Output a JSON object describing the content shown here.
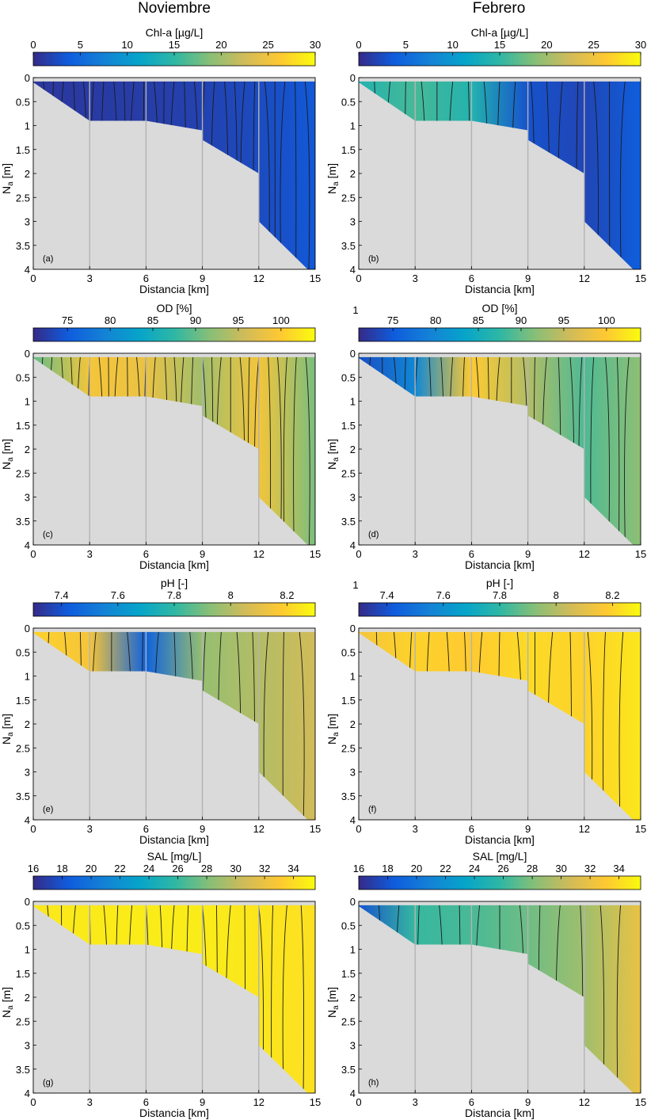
{
  "columns": [
    "Noviembre",
    "Febrero"
  ],
  "colors": {
    "shore": "#dadada",
    "contour": "#1a1a1a"
  },
  "chart_data": [
    {
      "type": "contour",
      "panel_label": "(a)",
      "column": "Noviembre",
      "colorbar_label": "Chl-a [µg/L]",
      "colorbar_ticks": [
        "0",
        "5",
        "10",
        "15",
        "20",
        "25",
        "30"
      ],
      "colorbar_range": [
        0,
        30
      ],
      "xlabel": "Distancia [km]",
      "ylabel": "N_a [m]",
      "xticks": [
        "0",
        "3",
        "6",
        "9",
        "12",
        "15"
      ],
      "yticks": [
        "0",
        "0.5",
        "1",
        "1.5",
        "2",
        "2.5",
        "3",
        "3.5",
        "4"
      ],
      "xlim": [
        0,
        15
      ],
      "ylim": [
        4,
        0
      ],
      "stations_km": [
        3,
        6,
        9,
        12
      ],
      "bottom_depth_m": [
        [
          0,
          0.1
        ],
        [
          3,
          0.9
        ],
        [
          6,
          0.9
        ],
        [
          9,
          1.1
        ],
        [
          9,
          1.3
        ],
        [
          12,
          2.0
        ],
        [
          12,
          3.0
        ],
        [
          14.6,
          4.0
        ],
        [
          15,
          4.0
        ]
      ],
      "profile": [
        [
          0,
          1
        ],
        [
          3,
          1.2
        ],
        [
          6,
          1.4
        ],
        [
          9,
          1.8
        ],
        [
          12,
          2.5
        ],
        [
          15,
          3.5
        ]
      ],
      "contour_lines": 28
    },
    {
      "type": "contour",
      "panel_label": "(b)",
      "column": "Febrero",
      "colorbar_label": "Chl-a [µg/L]",
      "colorbar_ticks": [
        "0",
        "5",
        "10",
        "15",
        "20",
        "25",
        "30"
      ],
      "colorbar_range": [
        0,
        30
      ],
      "xlabel": "Distancia [km]",
      "ylabel": "N_a [m]",
      "xticks": [
        "0",
        "3",
        "6",
        "9",
        "12",
        "15"
      ],
      "yticks": [
        "0",
        "0.5",
        "1",
        "1.5",
        "2",
        "2.5",
        "3",
        "3.5",
        "4"
      ],
      "xlim": [
        0,
        15
      ],
      "ylim": [
        4,
        0
      ],
      "stations_km": [
        3,
        6,
        9,
        12
      ],
      "bottom_depth_m": [
        [
          0,
          0.1
        ],
        [
          3,
          0.9
        ],
        [
          6,
          0.9
        ],
        [
          9,
          1.1
        ],
        [
          9,
          1.3
        ],
        [
          12,
          2.0
        ],
        [
          12,
          3.0
        ],
        [
          14.6,
          4.0
        ],
        [
          15,
          4.0
        ]
      ],
      "profile": [
        [
          0,
          14
        ],
        [
          3,
          16
        ],
        [
          6,
          14
        ],
        [
          9,
          3
        ],
        [
          12,
          2
        ],
        [
          15,
          4
        ]
      ],
      "contour_lines": 18
    },
    {
      "type": "contour",
      "panel_label": "(c)",
      "column": "Noviembre",
      "colorbar_label": "OD [%]",
      "colorbar_ticks": [
        "75",
        "80",
        "85",
        "90",
        "95",
        "100"
      ],
      "colorbar_range": [
        71,
        104
      ],
      "xlabel": "Distancia [km]",
      "ylabel": "N_a [m]",
      "xticks": [
        "0",
        "3",
        "6",
        "9",
        "12",
        "15"
      ],
      "yticks": [
        "0",
        "0.5",
        "1",
        "1.5",
        "2",
        "2.5",
        "3",
        "3.5",
        "4"
      ],
      "xlim": [
        0,
        15
      ],
      "ylim": [
        4,
        0
      ],
      "stations_km": [
        3,
        6,
        9,
        12
      ],
      "bottom_depth_m": [
        [
          0,
          0.1
        ],
        [
          3,
          0.9
        ],
        [
          6,
          0.9
        ],
        [
          9,
          1.1
        ],
        [
          9,
          1.3
        ],
        [
          12,
          2.0
        ],
        [
          12,
          3.0
        ],
        [
          14.6,
          4.0
        ],
        [
          15,
          4.0
        ]
      ],
      "profile": [
        [
          0,
          90
        ],
        [
          3,
          99
        ],
        [
          6,
          98
        ],
        [
          9,
          93
        ],
        [
          12,
          99
        ],
        [
          15,
          91
        ]
      ],
      "contour_lines": 30
    },
    {
      "type": "contour",
      "panel_label": "(d)",
      "column": "Febrero",
      "colorbar_label": "OD [%]",
      "colorbar_ticks": [
        "75",
        "80",
        "85",
        "90",
        "95",
        "100"
      ],
      "colorbar_range": [
        71,
        104
      ],
      "colorbar_extra_label": "1",
      "xlabel": "Distancia [km]",
      "ylabel": "N_a [m]",
      "xticks": [
        "0",
        "3",
        "6",
        "9",
        "12",
        "15"
      ],
      "yticks": [
        "0",
        "0.5",
        "1",
        "1.5",
        "2",
        "2.5",
        "3",
        "3.5",
        "4"
      ],
      "xlim": [
        0,
        15
      ],
      "ylim": [
        4,
        0
      ],
      "stations_km": [
        3,
        6,
        9,
        12
      ],
      "bottom_depth_m": [
        [
          0,
          0.1
        ],
        [
          3,
          0.9
        ],
        [
          6,
          0.9
        ],
        [
          9,
          1.1
        ],
        [
          9,
          1.3
        ],
        [
          12,
          2.0
        ],
        [
          12,
          3.0
        ],
        [
          14.6,
          4.0
        ],
        [
          15,
          4.0
        ]
      ],
      "profile": [
        [
          0,
          74
        ],
        [
          3,
          80
        ],
        [
          6,
          100
        ],
        [
          9,
          94
        ],
        [
          12,
          89
        ],
        [
          15,
          92
        ]
      ],
      "contour_lines": 24
    },
    {
      "type": "contour",
      "panel_label": "(e)",
      "column": "Noviembre",
      "colorbar_label": "pH [-]",
      "colorbar_ticks": [
        "7.4",
        "7.6",
        "7.8",
        "8",
        "8.2"
      ],
      "colorbar_range": [
        7.3,
        8.3
      ],
      "xlabel": "Distancia [km]",
      "ylabel": "N_a [m]",
      "xticks": [
        "0",
        "3",
        "6",
        "9",
        "12",
        "15"
      ],
      "yticks": [
        "0",
        "0.5",
        "1",
        "1.5",
        "2",
        "2.5",
        "3",
        "3.5",
        "4"
      ],
      "xlim": [
        0,
        15
      ],
      "ylim": [
        4,
        0
      ],
      "stations_km": [
        3,
        6,
        9,
        12
      ],
      "bottom_depth_m": [
        [
          0,
          0.1
        ],
        [
          3,
          0.9
        ],
        [
          6,
          0.9
        ],
        [
          9,
          1.1
        ],
        [
          9,
          1.3
        ],
        [
          12,
          2.0
        ],
        [
          12,
          3.0
        ],
        [
          14.6,
          4.0
        ],
        [
          15,
          4.0
        ]
      ],
      "profile": [
        [
          0,
          8.2
        ],
        [
          3,
          8.15
        ],
        [
          6,
          7.45
        ],
        [
          9,
          7.95
        ],
        [
          12,
          8.0
        ],
        [
          15,
          8.05
        ]
      ],
      "contour_lines": 18
    },
    {
      "type": "contour",
      "panel_label": "(f)",
      "column": "Febrero",
      "colorbar_label": "pH [-]",
      "colorbar_ticks": [
        "7.4",
        "7.6",
        "7.8",
        "8",
        "8.2"
      ],
      "colorbar_range": [
        7.3,
        8.3
      ],
      "colorbar_extra_label": "1",
      "xlabel": "Distancia [km]",
      "ylabel": "N_a [m]",
      "xticks": [
        "0",
        "3",
        "6",
        "9",
        "12",
        "15"
      ],
      "yticks": [
        "0",
        "0.5",
        "1",
        "1.5",
        "2",
        "2.5",
        "3",
        "3.5",
        "4"
      ],
      "xlim": [
        0,
        15
      ],
      "ylim": [
        4,
        0
      ],
      "stations_km": [
        3,
        6,
        9,
        12
      ],
      "bottom_depth_m": [
        [
          0,
          0.1
        ],
        [
          3,
          0.9
        ],
        [
          6,
          0.9
        ],
        [
          9,
          1.1
        ],
        [
          9,
          1.3
        ],
        [
          12,
          2.0
        ],
        [
          12,
          3.0
        ],
        [
          14.6,
          4.0
        ],
        [
          15,
          4.0
        ]
      ],
      "profile": [
        [
          0,
          8.15
        ],
        [
          3,
          8.2
        ],
        [
          6,
          8.18
        ],
        [
          9,
          8.22
        ],
        [
          12,
          8.2
        ],
        [
          15,
          8.25
        ]
      ],
      "contour_lines": 16
    },
    {
      "type": "contour",
      "panel_label": "(g)",
      "column": "Noviembre",
      "colorbar_label": "SAL [mg/L]",
      "colorbar_ticks": [
        "16",
        "18",
        "20",
        "22",
        "24",
        "26",
        "28",
        "30",
        "32",
        "34"
      ],
      "colorbar_range": [
        16,
        35.5
      ],
      "xlabel": "Distancia [km]",
      "ylabel": "N_a [m]",
      "xticks": [
        "0",
        "3",
        "6",
        "9",
        "12",
        "15"
      ],
      "yticks": [
        "0",
        "0.5",
        "1",
        "1.5",
        "2",
        "2.5",
        "3",
        "3.5",
        "4"
      ],
      "xlim": [
        0,
        15
      ],
      "ylim": [
        4,
        0
      ],
      "stations_km": [
        3,
        6,
        9,
        12
      ],
      "bottom_depth_m": [
        [
          0,
          0.1
        ],
        [
          3,
          0.9
        ],
        [
          6,
          0.9
        ],
        [
          9,
          1.1
        ],
        [
          9,
          1.3
        ],
        [
          12,
          2.0
        ],
        [
          12,
          3.0
        ],
        [
          14.6,
          4.0
        ],
        [
          15,
          4.0
        ]
      ],
      "profile": [
        [
          0,
          34.6
        ],
        [
          3,
          34.7
        ],
        [
          6,
          34.8
        ],
        [
          9,
          34.8
        ],
        [
          12,
          34.5
        ],
        [
          15,
          34.2
        ]
      ],
      "contour_lines": 20
    },
    {
      "type": "contour",
      "panel_label": "(h)",
      "column": "Febrero",
      "colorbar_label": "SAL [mg/L]",
      "colorbar_ticks": [
        "16",
        "18",
        "20",
        "22",
        "24",
        "26",
        "28",
        "30",
        "32",
        "34"
      ],
      "colorbar_range": [
        16,
        35.5
      ],
      "xlabel": "Distancia [km]",
      "ylabel": "N_a [m]",
      "xticks": [
        "0",
        "3",
        "6",
        "9",
        "12",
        "15"
      ],
      "yticks": [
        "0",
        "0.5",
        "1",
        "1.5",
        "2",
        "2.5",
        "3",
        "3.5",
        "4"
      ],
      "xlim": [
        0,
        15
      ],
      "ylim": [
        4,
        0
      ],
      "stations_km": [
        3,
        6,
        9,
        12
      ],
      "bottom_depth_m": [
        [
          0,
          0.1
        ],
        [
          3,
          0.9
        ],
        [
          6,
          0.9
        ],
        [
          9,
          1.1
        ],
        [
          9,
          1.3
        ],
        [
          12,
          2.0
        ],
        [
          12,
          3.0
        ],
        [
          14.6,
          4.0
        ],
        [
          15,
          4.0
        ]
      ],
      "profile": [
        [
          0,
          18
        ],
        [
          3,
          26
        ],
        [
          6,
          26.5
        ],
        [
          9,
          27.5
        ],
        [
          12,
          29
        ],
        [
          15,
          32
        ]
      ],
      "contour_lines": 14
    }
  ]
}
